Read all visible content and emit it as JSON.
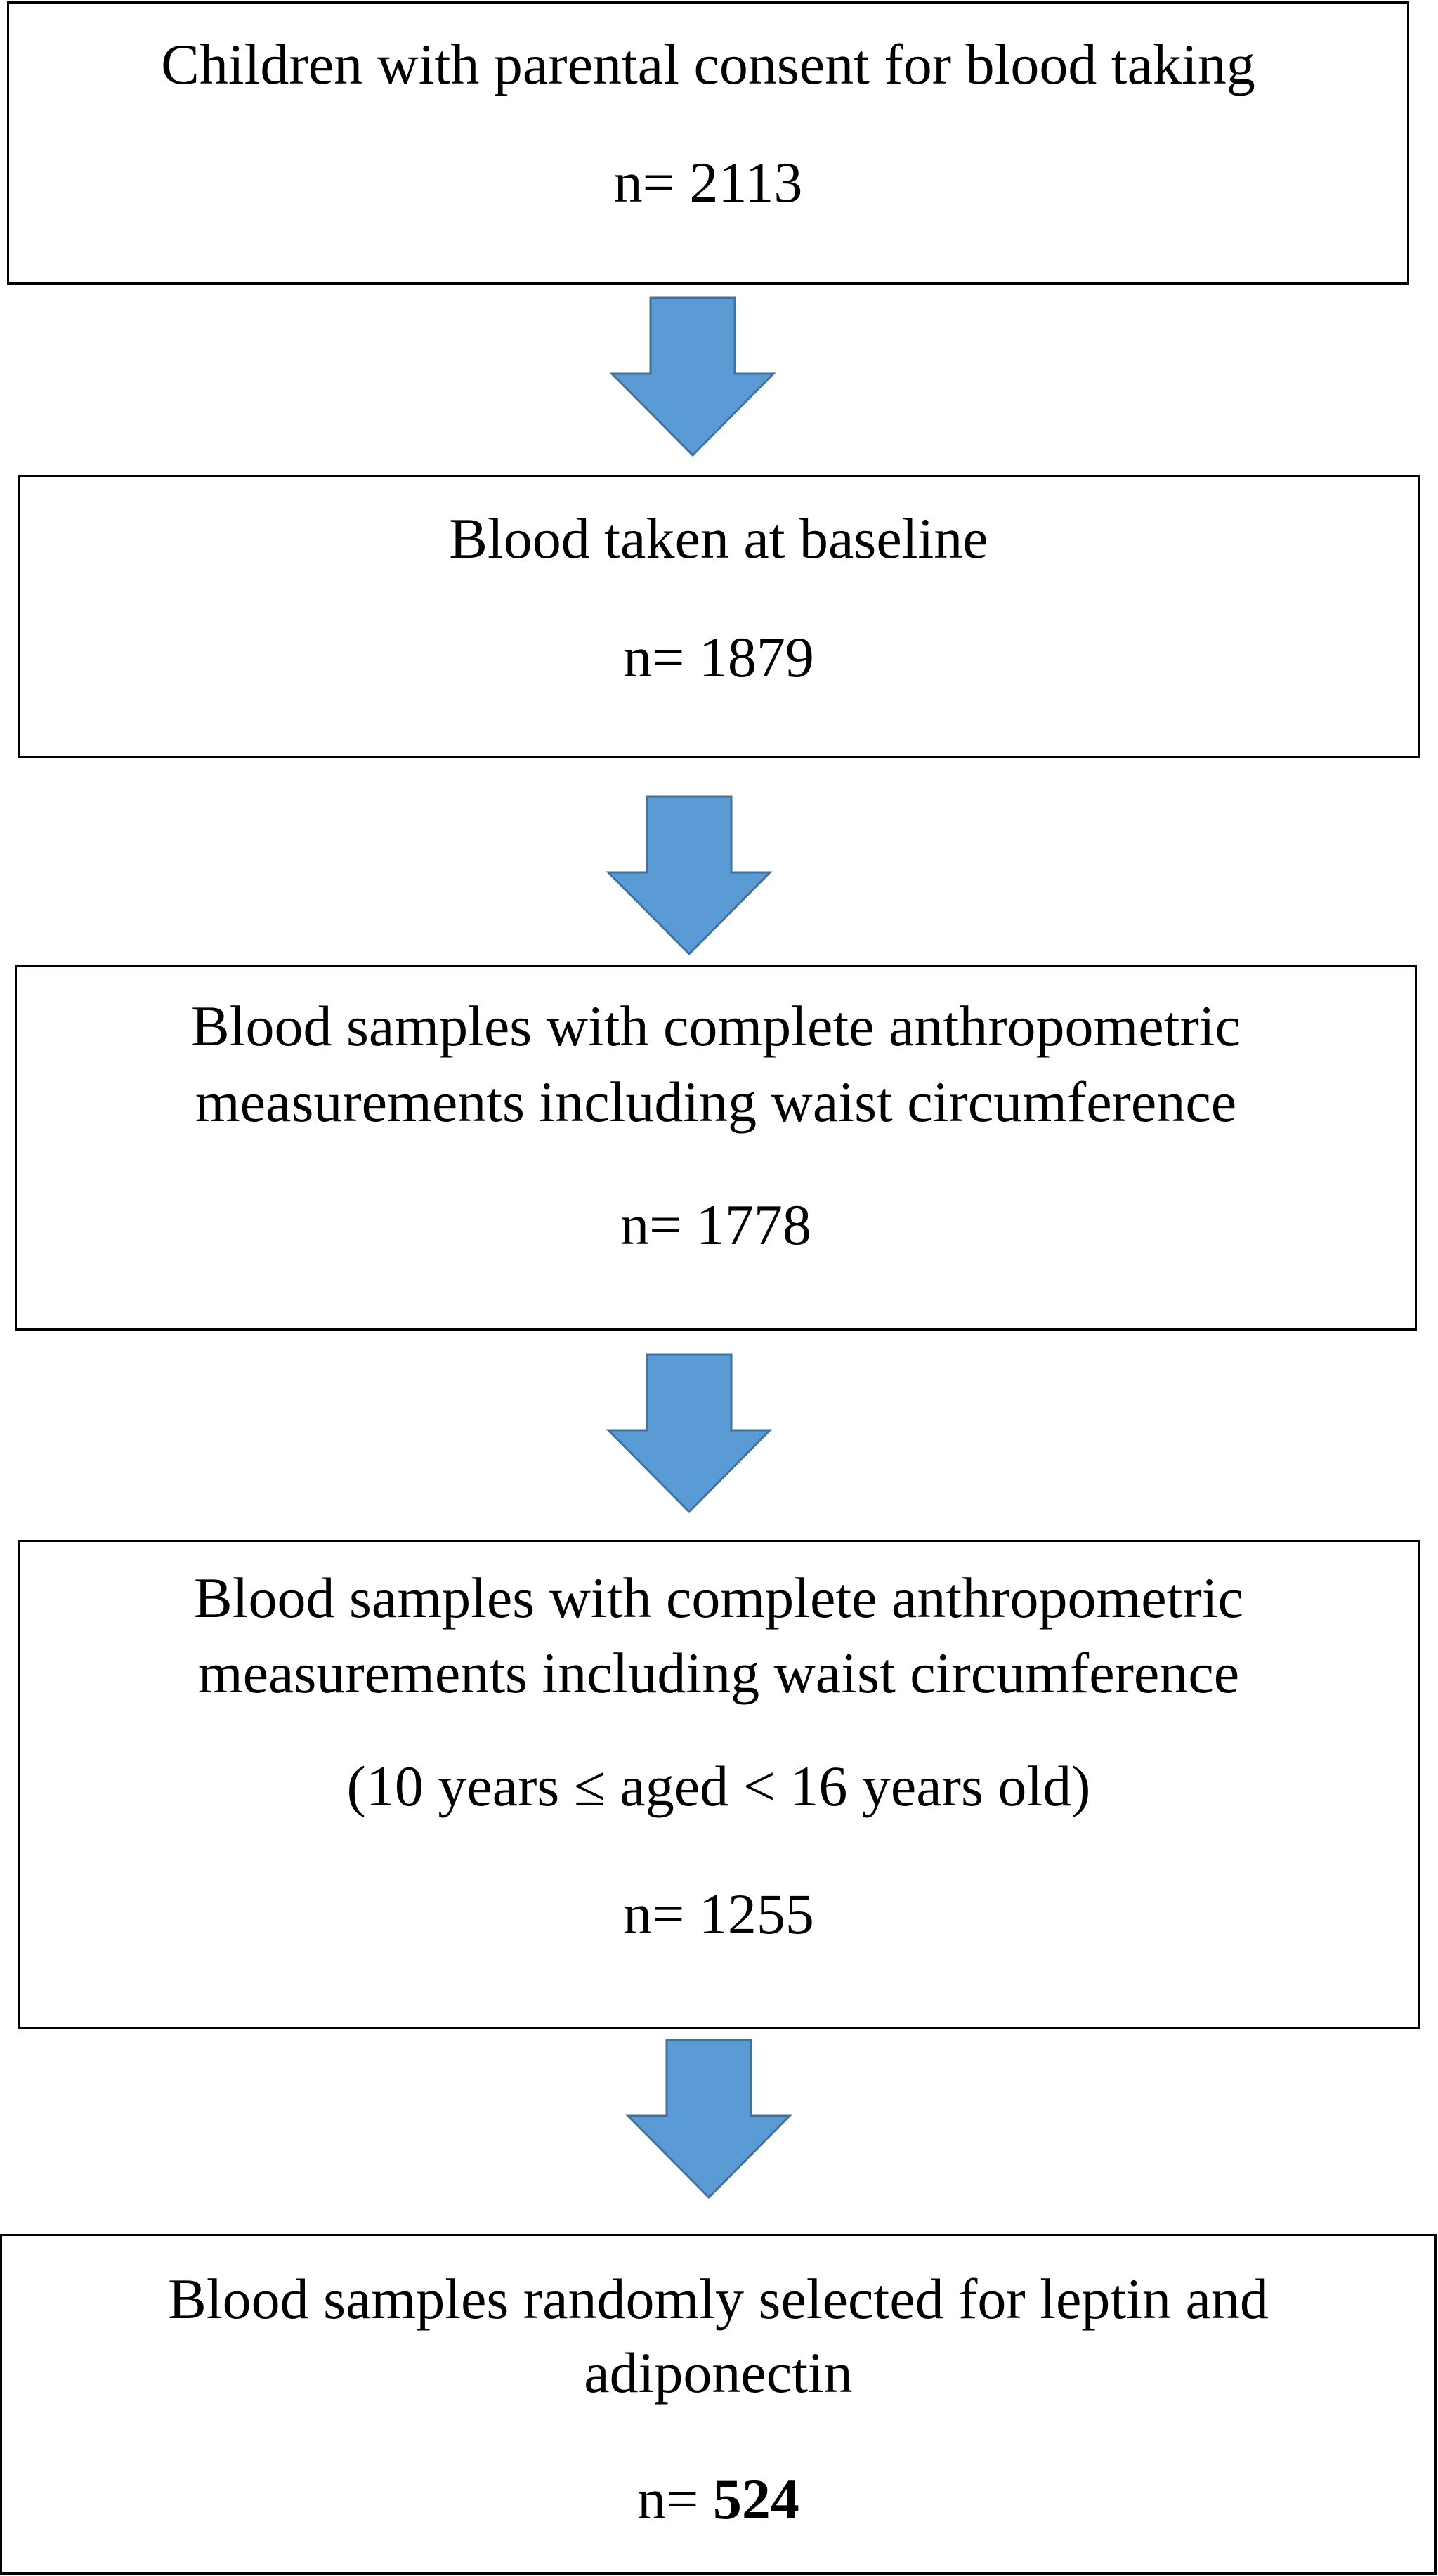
{
  "flowchart": {
    "steps": [
      {
        "lines": [
          "Children with parental consent for blood taking"
        ],
        "count_prefix": "n= ",
        "count_value": "2113"
      },
      {
        "lines": [
          "Blood taken at baseline"
        ],
        "count_prefix": "n= ",
        "count_value": "1879"
      },
      {
        "lines": [
          "Blood samples with complete anthropometric",
          "measurements including waist circumference"
        ],
        "count_prefix": "n= ",
        "count_value": "1778"
      },
      {
        "lines": [
          "Blood samples with complete anthropometric",
          "measurements including waist circumference",
          "(10 years ≤ aged < 16 years old)"
        ],
        "count_prefix": "n= ",
        "count_value": "1255"
      },
      {
        "lines": [
          "Blood samples randomly selected for leptin and",
          "adiponectin"
        ],
        "count_prefix": "n= ",
        "count_value": "524"
      }
    ]
  },
  "colors": {
    "arrow_fill": "#5b9bd5",
    "arrow_stroke": "#41719c",
    "box_border": "#000000"
  }
}
